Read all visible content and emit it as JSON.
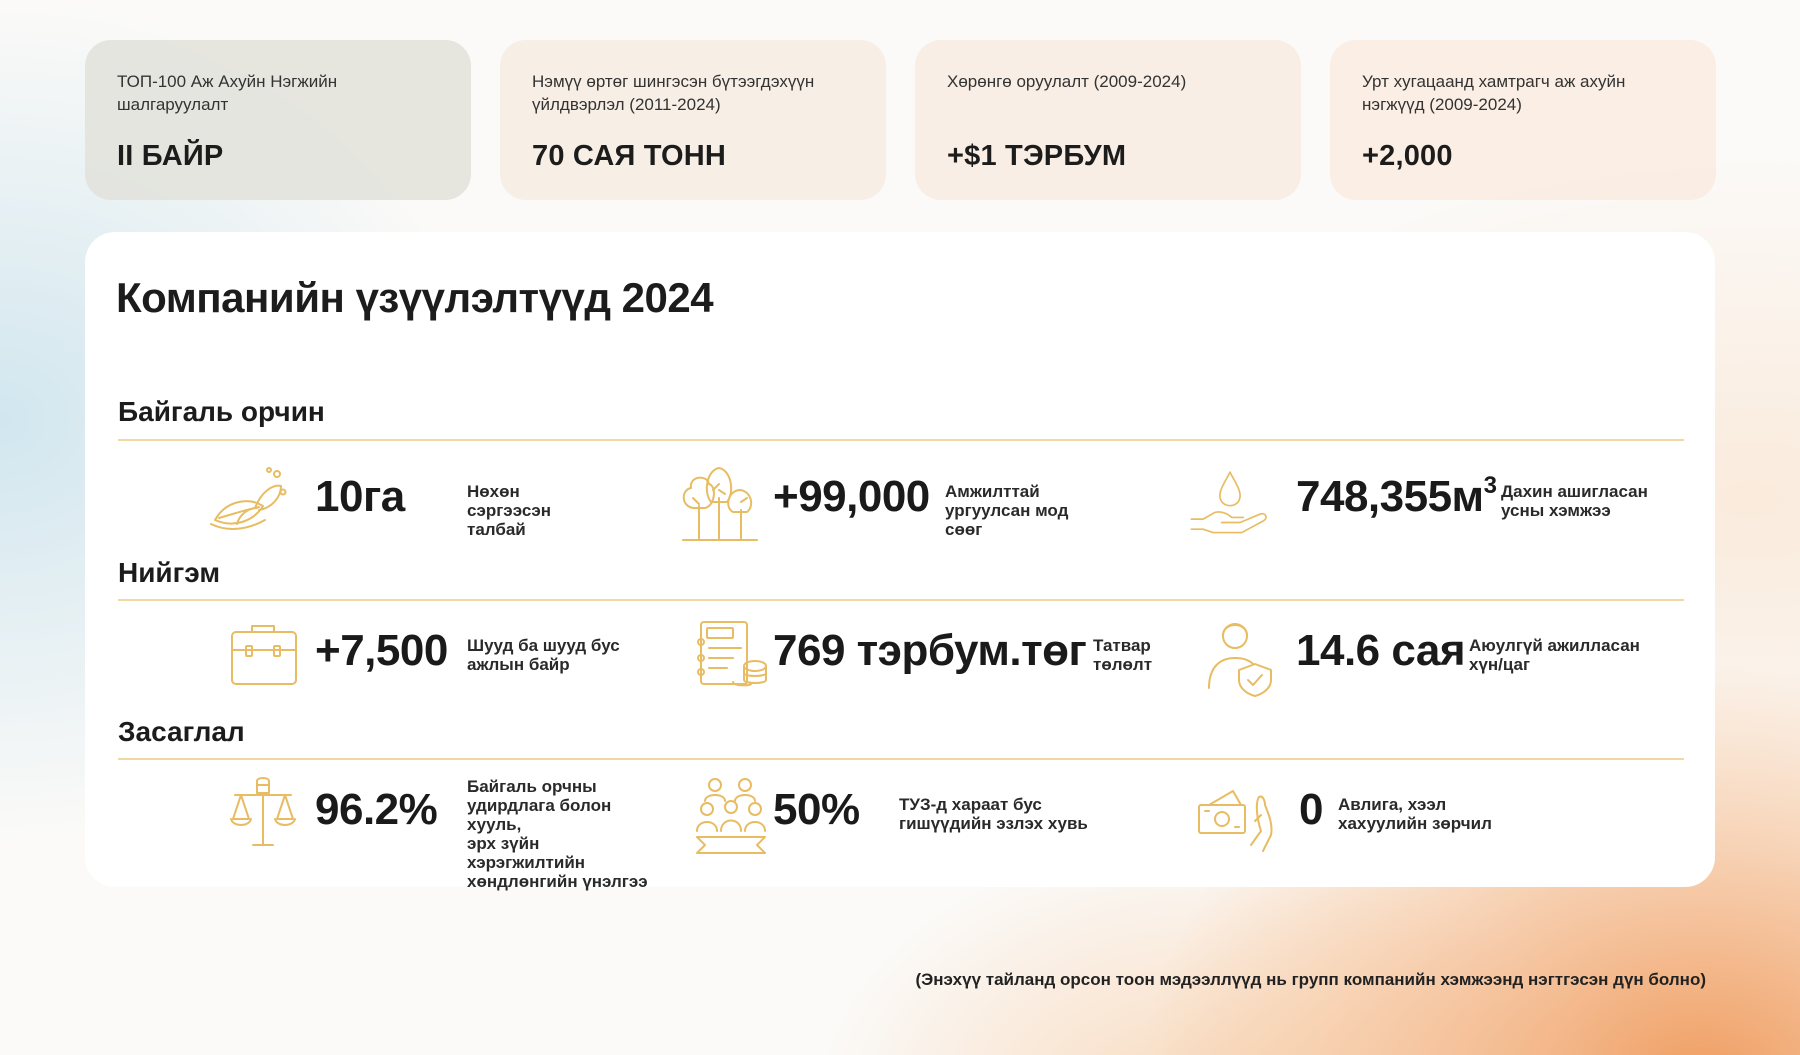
{
  "top_stats": [
    {
      "label": "ТОП-100 Аж Ахуйн Нэгжийн шалгаруулалт",
      "value": "II БАЙР"
    },
    {
      "label": "Нэмүү өртөг шингэсэн бүтээгдэхүүн үйлдвэрлэл (2011-2024)",
      "value": "70 САЯ ТОНН"
    },
    {
      "label": "Хөрөнгө оруулалт (2009-2024)",
      "value": "+$1 ТЭРБУМ"
    },
    {
      "label": "Урт хугацаанд хамтрагч аж ахуйн нэгжүүд (2009-2024)",
      "value": "+2,000"
    }
  ],
  "panel_title": "Компанийн үзүүлэлтүүд 2024",
  "sections": {
    "environment": {
      "title": "Байгаль орчин",
      "metrics": [
        {
          "icon": "seed-leaf-icon",
          "value": "10га",
          "desc": "Нөхөн сэргээсэн\nталбай"
        },
        {
          "icon": "trees-icon",
          "value": "+99,000",
          "desc": "Амжилттай\nургуулсан мод сөөг"
        },
        {
          "icon": "water-drop-hand-icon",
          "value": "748,355м",
          "value_sup": "3",
          "desc": "Дахин ашигласан\nусны хэмжээ"
        }
      ]
    },
    "social": {
      "title": "Нийгэм",
      "metrics": [
        {
          "icon": "briefcase-icon",
          "value": "+7,500",
          "desc": "Шууд ба шууд бус\nажлын байр"
        },
        {
          "icon": "tax-document-coins-icon",
          "value": "769 тэрбум.төг",
          "desc": "Татвар\nтөлөлт"
        },
        {
          "icon": "worker-shield-icon",
          "value": "14.6 сая",
          "desc": "Аюулгүй ажилласан\nхүн/цаг"
        }
      ]
    },
    "governance": {
      "title": "Засаглал",
      "metrics": [
        {
          "icon": "scales-fist-icon",
          "value": "96.2%",
          "desc": "Байгаль орчны\nудирдлага болон хууль,\nэрх зүйн хэрэгжилтийн\nхөндлөнгийн үнэлгээ"
        },
        {
          "icon": "board-members-icon",
          "value": "50%",
          "desc": "ТУЗ-д хараат бус\nгишүүдийн эзлэх хувь"
        },
        {
          "icon": "no-bribe-hand-icon",
          "value": "0",
          "desc": "Авлига, хээл\nхахуулийн зөрчил"
        }
      ]
    }
  },
  "footnote": "(Энэхүү тайланд орсон тоон мэдээллүүд нь групп компанийн хэмжээнд нэгтгэсэн дүн болно)",
  "colors": {
    "accent_gold": "#e8bc62",
    "divider": "#f0d9a1",
    "panel": "#ffffff"
  }
}
